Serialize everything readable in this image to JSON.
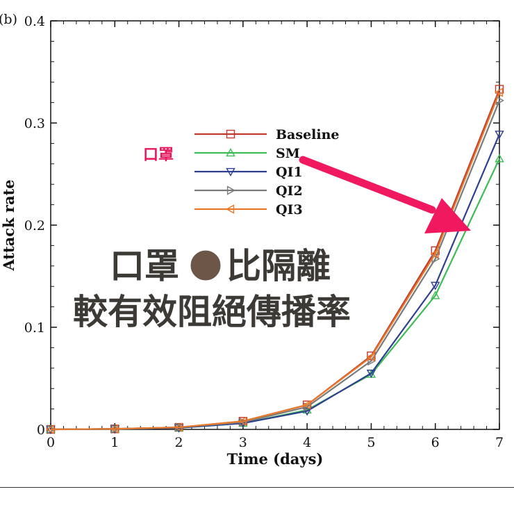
{
  "panel_label": "(b)",
  "chart_data": {
    "type": "line",
    "title": "",
    "xlabel": "Time (days)",
    "ylabel": "Attack rate",
    "xlim": [
      0,
      7
    ],
    "ylim": [
      0,
      0.4
    ],
    "x": [
      0,
      1,
      2,
      3,
      4,
      5,
      6,
      7
    ],
    "xticks": [
      "0",
      "1",
      "2",
      "3",
      "4",
      "5",
      "6",
      "7"
    ],
    "yticks": [
      "0",
      "0.1",
      "0.2",
      "0.3",
      "0.4"
    ],
    "series": [
      {
        "name": "Baseline",
        "color": "#c0392b",
        "marker": "square",
        "values": [
          0,
          0.0005,
          0.002,
          0.008,
          0.024,
          0.072,
          0.175,
          0.333
        ]
      },
      {
        "name": "SM",
        "color": "#3dbb55",
        "marker": "triangle-up",
        "values": [
          0,
          0.0004,
          0.0015,
          0.006,
          0.019,
          0.054,
          0.131,
          0.265
        ]
      },
      {
        "name": "QI1",
        "color": "#2f3f8f",
        "marker": "triangle-down",
        "values": [
          0,
          0.0004,
          0.0015,
          0.006,
          0.018,
          0.055,
          0.141,
          0.289
        ]
      },
      {
        "name": "QI2",
        "color": "#7a7a7a",
        "marker": "triangle-right",
        "values": [
          0,
          0.0005,
          0.002,
          0.007,
          0.022,
          0.067,
          0.167,
          0.322
        ]
      },
      {
        "name": "QI3",
        "color": "#e8782a",
        "marker": "triangle-left",
        "values": [
          0,
          0.0005,
          0.002,
          0.008,
          0.024,
          0.071,
          0.172,
          0.33
        ]
      }
    ],
    "legend_position": "top-center"
  },
  "annotations": {
    "mask_tag": "口罩",
    "overlay_line1_left": "口罩",
    "overlay_line1_right": "比隔離",
    "overlay_line2": "較有效阻絕傳播率",
    "arrow_color": "#f0185f",
    "dot_color": "#6b5647"
  }
}
